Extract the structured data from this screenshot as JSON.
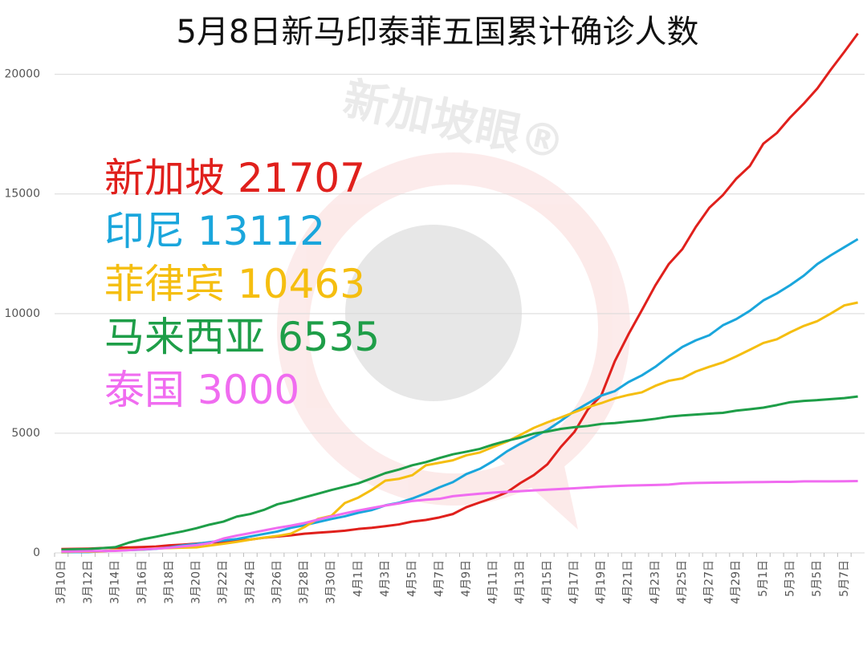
{
  "chart_data": {
    "type": "line",
    "title": "5月8日新马印泰菲五国累计确诊人数",
    "watermark": "新加坡眼®",
    "categories": [
      "3月10日",
      null,
      "3月12日",
      null,
      "3月14日",
      null,
      "3月16日",
      null,
      "3月18日",
      null,
      "3月20日",
      null,
      "3月22日",
      null,
      "3月24日",
      null,
      "3月26日",
      null,
      "3月28日",
      null,
      "3月30日",
      null,
      "4月1日",
      null,
      "4月3日",
      null,
      "4月5日",
      null,
      "4月7日",
      null,
      "4月9日",
      null,
      "4月11日",
      null,
      "4月13日",
      null,
      "4月15日",
      null,
      "4月17日",
      null,
      "4月19日",
      null,
      "4月21日",
      null,
      "4月23日",
      null,
      "4月25日",
      null,
      "4月27日",
      null,
      "4月29日",
      null,
      "5月1日",
      null,
      "5月3日",
      null,
      "5月5日",
      null,
      "5月7日",
      null
    ],
    "series": [
      {
        "name": "新加坡",
        "color": "#e0201c",
        "values": [
          160,
          166,
          178,
          200,
          212,
          226,
          243,
          266,
          313,
          345,
          385,
          432,
          455,
          509,
          558,
          631,
          683,
          732,
          802,
          844,
          879,
          926,
          1000,
          1049,
          1114,
          1189,
          1309,
          1375,
          1481,
          1623,
          1910,
          2108,
          2299,
          2532,
          2918,
          3252,
          3699,
          4427,
          5050,
          5992,
          6588,
          8014,
          9125,
          10141,
          11178,
          12075,
          12693,
          13624,
          14423,
          14951,
          15641,
          16169,
          17101,
          17548,
          18205,
          18778,
          19410,
          20198,
          20939,
          21707
        ]
      },
      {
        "name": "印尼",
        "color": "#1aa6dc",
        "values": [
          27,
          34,
          34,
          69,
          96,
          117,
          134,
          172,
          227,
          309,
          369,
          450,
          514,
          579,
          686,
          790,
          893,
          1046,
          1155,
          1285,
          1414,
          1528,
          1677,
          1790,
          1986,
          2092,
          2273,
          2491,
          2738,
          2956,
          3293,
          3512,
          3842,
          4241,
          4557,
          4839,
          5136,
          5516,
          5923,
          6248,
          6575,
          6760,
          7135,
          7418,
          7775,
          8211,
          8607,
          8882,
          9096,
          9511,
          9771,
          10118,
          10551,
          10843,
          11192,
          11587,
          12071,
          12438,
          12776,
          13112
        ]
      },
      {
        "name": "菲律宾",
        "color": "#f5be10",
        "values": [
          33,
          49,
          52,
          64,
          111,
          140,
          142,
          187,
          202,
          217,
          230,
          307,
          380,
          462,
          552,
          636,
          707,
          803,
          1075,
          1418,
          1546,
          2084,
          2311,
          2633,
          3018,
          3094,
          3246,
          3660,
          3764,
          3870,
          4076,
          4195,
          4428,
          4648,
          4932,
          5223,
          5453,
          5660,
          5878,
          6087,
          6259,
          6459,
          6599,
          6710,
          6981,
          7192,
          7294,
          7579,
          7777,
          7958,
          8212,
          8488,
          8772,
          8928,
          9223,
          9485,
          9684,
          10004,
          10343,
          10463
        ]
      },
      {
        "name": "马来西亚",
        "color": "#1e9e48",
        "values": [
          129,
          149,
          158,
          197,
          238,
          428,
          566,
          673,
          790,
          900,
          1030,
          1183,
          1306,
          1518,
          1624,
          1796,
          2031,
          2161,
          2320,
          2470,
          2626,
          2766,
          2908,
          3116,
          3333,
          3483,
          3662,
          3793,
          3963,
          4119,
          4228,
          4346,
          4530,
          4683,
          4817,
          4987,
          5072,
          5182,
          5251,
          5305,
          5389,
          5425,
          5482,
          5532,
          5603,
          5691,
          5742,
          5780,
          5820,
          5851,
          5945,
          6002,
          6071,
          6176,
          6298,
          6353,
          6383,
          6428,
          6467,
          6535
        ]
      },
      {
        "name": "泰国",
        "color": "#f06cf0",
        "values": [
          53,
          59,
          70,
          75,
          82,
          114,
          147,
          177,
          212,
          272,
          322,
          411,
          599,
          721,
          827,
          934,
          1045,
          1136,
          1245,
          1388,
          1524,
          1651,
          1771,
          1875,
          1978,
          2067,
          2169,
          2220,
          2258,
          2369,
          2423,
          2473,
          2518,
          2551,
          2579,
          2613,
          2643,
          2672,
          2700,
          2733,
          2765,
          2792,
          2811,
          2826,
          2839,
          2854,
          2907,
          2922,
          2931,
          2938,
          2947,
          2954,
          2960,
          2966,
          2969,
          2987,
          2988,
          2989,
          2992,
          3000
        ]
      }
    ],
    "ylim": [
      0,
      22000
    ],
    "yticks": [
      0,
      5000,
      10000,
      15000,
      20000
    ],
    "grid": true
  }
}
